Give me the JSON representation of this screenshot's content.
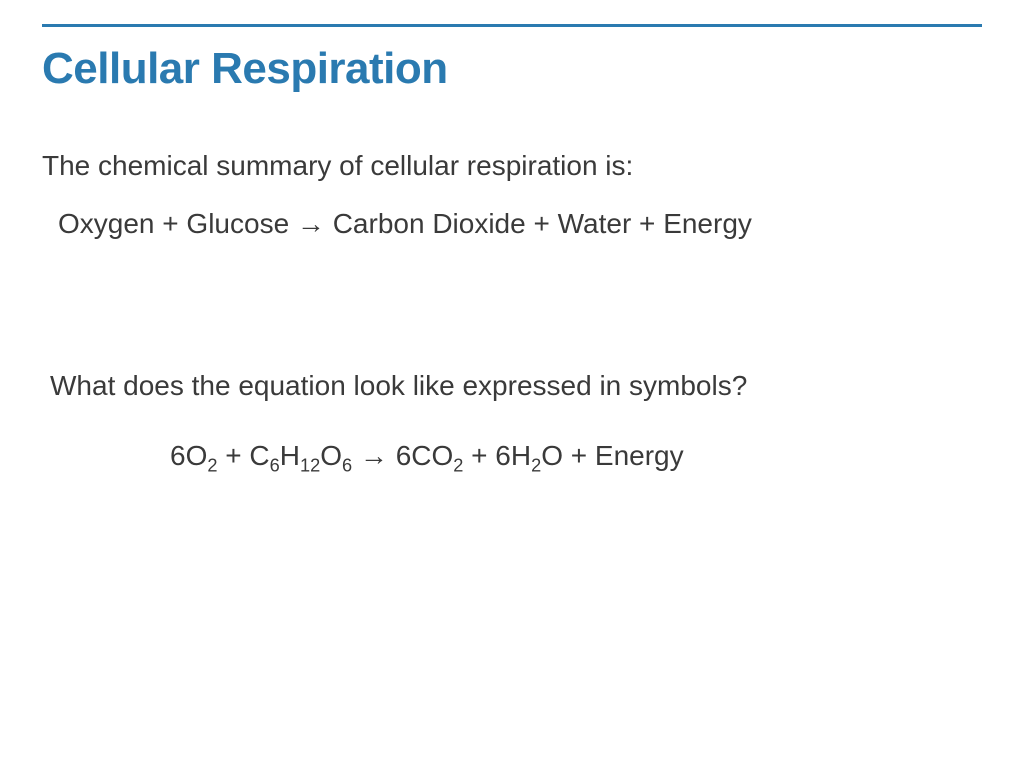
{
  "slide": {
    "title": "Cellular Respiration",
    "intro": "The chemical summary of cellular respiration is:",
    "word_equation": {
      "reactant1": "Oxygen",
      "plus1": " + ",
      "reactant2": "Glucose",
      "arrow": "  →  ",
      "product1": "Carbon Dioxide",
      "plus2": " + ",
      "product2": "Water",
      "plus3": " + ",
      "product3": "Energy"
    },
    "question": "What does the equation look like expressed in symbols?",
    "symbol_equation": {
      "coef1": "6O",
      "sub1": "2",
      "plus1": " + C",
      "sub2": "6",
      "h": "H",
      "sub3": "12",
      "o": "O",
      "sub4": "6",
      "arrow": "  →  ",
      "coef2": "6CO",
      "sub5": "2",
      "plus2": " + 6H",
      "sub6": "2",
      "tail": "O + Energy"
    }
  },
  "style": {
    "title_color": "#2a7ab0",
    "rule_color": "#2a7ab0",
    "text_color": "#3a3a3a",
    "background_color": "#ffffff",
    "title_fontsize": 44,
    "body_fontsize": 28,
    "rule_thickness": 3
  }
}
